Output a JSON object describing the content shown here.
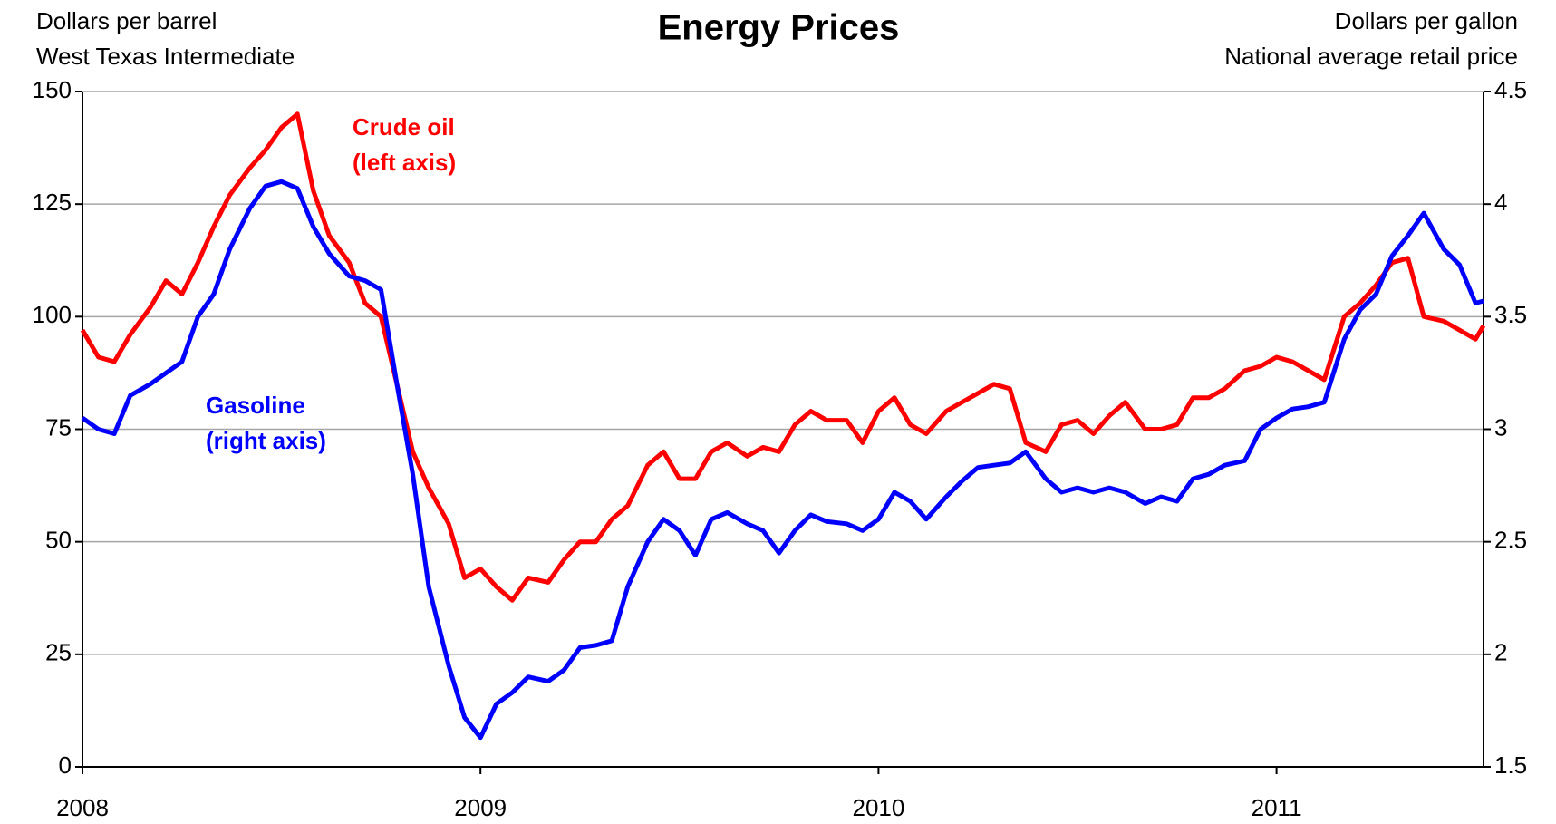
{
  "chart_data": {
    "type": "line",
    "title": "Energy Prices",
    "ylabel": [
      "Dollars per barrel",
      "West Texas Intermediate"
    ],
    "y2label": [
      "Dollars per gallon",
      "National average retail price"
    ],
    "x": [
      2008.0,
      2008.04,
      2008.08,
      2008.12,
      2008.17,
      2008.21,
      2008.25,
      2008.29,
      2008.33,
      2008.37,
      2008.42,
      2008.46,
      2008.5,
      2008.54,
      2008.58,
      2008.62,
      2008.67,
      2008.71,
      2008.75,
      2008.79,
      2008.83,
      2008.87,
      2008.92,
      2008.96,
      2009.0,
      2009.04,
      2009.08,
      2009.12,
      2009.17,
      2009.21,
      2009.25,
      2009.29,
      2009.33,
      2009.37,
      2009.42,
      2009.46,
      2009.5,
      2009.54,
      2009.58,
      2009.62,
      2009.67,
      2009.71,
      2009.75,
      2009.79,
      2009.83,
      2009.87,
      2009.92,
      2009.96,
      2010.0,
      2010.04,
      2010.08,
      2010.12,
      2010.17,
      2010.21,
      2010.25,
      2010.29,
      2010.33,
      2010.37,
      2010.42,
      2010.46,
      2010.5,
      2010.54,
      2010.58,
      2010.62,
      2010.67,
      2010.71,
      2010.75,
      2010.79,
      2010.83,
      2010.87,
      2010.92,
      2010.96,
      2011.0,
      2011.04,
      2011.08,
      2011.12,
      2011.17,
      2011.21,
      2011.25,
      2011.29,
      2011.33,
      2011.37,
      2011.42,
      2011.46,
      2011.5,
      2011.52
    ],
    "series": [
      {
        "name": "Crude oil",
        "axis_note": "(left axis)",
        "color": "#ff0000",
        "axis": "y",
        "values": [
          97,
          91,
          90,
          96,
          102,
          108,
          105,
          112,
          120,
          127,
          133,
          137,
          142,
          145,
          128,
          118,
          112,
          103,
          100,
          85,
          70,
          62,
          54,
          42,
          44,
          40,
          37,
          42,
          41,
          46,
          50,
          50,
          55,
          58,
          67,
          70,
          64,
          64,
          70,
          72,
          69,
          71,
          70,
          76,
          79,
          77,
          77,
          72,
          79,
          82,
          76,
          74,
          79,
          81,
          83,
          85,
          84,
          72,
          70,
          76,
          77,
          74,
          78,
          81,
          75,
          75,
          76,
          82,
          82,
          84,
          88,
          89,
          91,
          90,
          88,
          86,
          100,
          103,
          107,
          112,
          113,
          100,
          99,
          97,
          95,
          98
        ]
      },
      {
        "name": "Gasoline",
        "axis_note": "(right axis)",
        "color": "#0000ff",
        "axis": "y2",
        "values": [
          3.05,
          3.0,
          2.98,
          3.15,
          3.2,
          3.25,
          3.3,
          3.5,
          3.6,
          3.8,
          3.98,
          4.08,
          4.1,
          4.07,
          3.9,
          3.78,
          3.68,
          3.66,
          3.62,
          3.2,
          2.8,
          2.3,
          1.95,
          1.72,
          1.63,
          1.78,
          1.83,
          1.9,
          1.88,
          1.93,
          2.03,
          2.04,
          2.06,
          2.3,
          2.5,
          2.6,
          2.55,
          2.44,
          2.6,
          2.63,
          2.58,
          2.55,
          2.45,
          2.55,
          2.62,
          2.59,
          2.58,
          2.55,
          2.6,
          2.72,
          2.68,
          2.6,
          2.7,
          2.77,
          2.83,
          2.84,
          2.85,
          2.9,
          2.78,
          2.72,
          2.74,
          2.72,
          2.74,
          2.72,
          2.67,
          2.7,
          2.68,
          2.78,
          2.8,
          2.84,
          2.86,
          3.0,
          3.05,
          3.09,
          3.1,
          3.12,
          3.4,
          3.53,
          3.6,
          3.77,
          3.86,
          3.96,
          3.8,
          3.73,
          3.56,
          3.57
        ]
      }
    ],
    "xlim": [
      2008,
      2011.52
    ],
    "xticks": [
      2008,
      2009,
      2010,
      2011
    ],
    "ylim": [
      0,
      150
    ],
    "yticks": [
      0,
      25,
      50,
      75,
      100,
      125,
      150
    ],
    "y2lim": [
      1.5,
      4.5
    ],
    "y2ticks": [
      1.5,
      2,
      2.5,
      3,
      3.5,
      4,
      4.5
    ],
    "grid": true
  }
}
